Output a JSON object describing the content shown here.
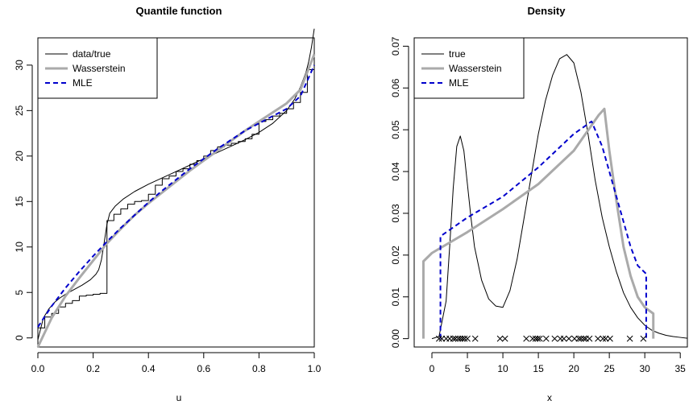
{
  "chart_data": [
    {
      "type": "line",
      "title": "Quantile function",
      "xlabel": "u",
      "ylabel": "",
      "xlim": [
        0,
        1
      ],
      "ylim": [
        -1,
        33
      ],
      "xticks": [
        "0.0",
        "0.2",
        "0.4",
        "0.6",
        "0.8",
        "1.0"
      ],
      "xtick_values": [
        0,
        0.2,
        0.4,
        0.6,
        0.8,
        1.0
      ],
      "yticks": [
        "0",
        "5",
        "10",
        "15",
        "20",
        "25",
        "30"
      ],
      "ytick_values": [
        0,
        5,
        10,
        15,
        20,
        25,
        30
      ],
      "legend_position": "top-left",
      "series": [
        {
          "name": "data/true",
          "color": "#000000",
          "style": "solid",
          "x": [
            0,
            0.01,
            0.02,
            0.04,
            0.06,
            0.08,
            0.1,
            0.13,
            0.16,
            0.19,
            0.21,
            0.22,
            0.23,
            0.24,
            0.25,
            0.26,
            0.28,
            0.31,
            0.35,
            0.4,
            0.45,
            0.5,
            0.55,
            0.6,
            0.65,
            0.7,
            0.75,
            0.8,
            0.85,
            0.9,
            0.93,
            0.95,
            0.97,
            0.98,
            0.99,
            1.0
          ],
          "y": [
            -0.2,
            1.0,
            2.2,
            3.2,
            3.9,
            4.4,
            4.8,
            5.3,
            5.8,
            6.4,
            7.0,
            7.5,
            8.6,
            10.5,
            12.5,
            13.7,
            14.5,
            15.3,
            16.1,
            16.9,
            17.6,
            18.3,
            19.0,
            19.7,
            20.4,
            21.1,
            21.8,
            22.6,
            23.6,
            25.0,
            26.3,
            27.6,
            29.2,
            30.4,
            32.0,
            34.0
          ]
        },
        {
          "name": "data/true (empirical steps)",
          "color": "#000000",
          "style": "step",
          "x": [
            0,
            0.025,
            0.05,
            0.075,
            0.1,
            0.125,
            0.15,
            0.175,
            0.2,
            0.225,
            0.25,
            0.275,
            0.3,
            0.325,
            0.35,
            0.375,
            0.4,
            0.425,
            0.45,
            0.475,
            0.5,
            0.525,
            0.55,
            0.575,
            0.6,
            0.625,
            0.65,
            0.675,
            0.7,
            0.725,
            0.75,
            0.775,
            0.8,
            0.825,
            0.85,
            0.875,
            0.9,
            0.925,
            0.95,
            0.975,
            1.0
          ],
          "y": [
            1.1,
            2.3,
            2.7,
            3.4,
            3.8,
            4.1,
            4.6,
            4.7,
            4.8,
            4.9,
            12.9,
            13.6,
            14.2,
            14.7,
            15.0,
            15.1,
            15.8,
            16.8,
            17.5,
            17.8,
            18.3,
            18.6,
            19.1,
            19.5,
            20.0,
            20.6,
            21.0,
            21.2,
            21.4,
            21.6,
            21.9,
            22.4,
            23.8,
            24.0,
            24.4,
            24.7,
            25.2,
            25.9,
            27.0,
            29.5,
            29.5
          ]
        },
        {
          "name": "Wasserstein",
          "color": "#aaaaaa",
          "style": "solid-thick",
          "x": [
            0,
            0.05,
            0.1,
            0.15,
            0.2,
            0.25,
            0.3,
            0.35,
            0.4,
            0.45,
            0.5,
            0.55,
            0.6,
            0.65,
            0.7,
            0.75,
            0.8,
            0.85,
            0.9,
            0.95,
            1.0
          ],
          "y": [
            -1.0,
            2.2,
            4.6,
            6.6,
            8.5,
            10.4,
            12.0,
            13.5,
            14.8,
            16.0,
            17.2,
            18.4,
            19.5,
            20.6,
            21.7,
            22.8,
            23.8,
            24.8,
            25.8,
            27.3,
            31.2
          ]
        },
        {
          "name": "MLE",
          "color": "#0000cc",
          "style": "dashed",
          "x": [
            0,
            0.05,
            0.1,
            0.15,
            0.2,
            0.25,
            0.3,
            0.35,
            0.4,
            0.45,
            0.5,
            0.55,
            0.6,
            0.65,
            0.7,
            0.75,
            0.8,
            0.85,
            0.9,
            0.95,
            1.0
          ],
          "y": [
            1.2,
            3.5,
            5.5,
            7.3,
            9.0,
            10.6,
            12.1,
            13.5,
            14.9,
            16.2,
            17.4,
            18.6,
            19.7,
            20.8,
            21.8,
            22.8,
            23.6,
            24.4,
            25.2,
            26.6,
            30.0
          ]
        }
      ]
    },
    {
      "type": "line",
      "title": "Density",
      "xlabel": "x",
      "ylabel": "",
      "xlim": [
        -2.5,
        36
      ],
      "ylim": [
        -0.002,
        0.072
      ],
      "xticks": [
        "0",
        "5",
        "10",
        "15",
        "20",
        "25",
        "30",
        "35"
      ],
      "xtick_values": [
        0,
        5,
        10,
        15,
        20,
        25,
        30,
        35
      ],
      "yticks": [
        "0.00",
        "0.01",
        "0.02",
        "0.03",
        "0.04",
        "0.05",
        "0.06",
        "0.07"
      ],
      "ytick_values": [
        0,
        0.01,
        0.02,
        0.03,
        0.04,
        0.05,
        0.06,
        0.07
      ],
      "legend_position": "top-left",
      "series": [
        {
          "name": "true",
          "color": "#000000",
          "style": "solid",
          "x": [
            0,
            1,
            2,
            2.5,
            3,
            3.5,
            4,
            4.5,
            5,
            5.5,
            6,
            7,
            8,
            9,
            10,
            11,
            12,
            13,
            14,
            15,
            16,
            17,
            18,
            19,
            20,
            21,
            22,
            23,
            24,
            25,
            26,
            27,
            28,
            29,
            30,
            31,
            32,
            33,
            34,
            35,
            36
          ],
          "y": [
            0,
            0.0005,
            0.009,
            0.022,
            0.036,
            0.046,
            0.0485,
            0.045,
            0.037,
            0.029,
            0.022,
            0.014,
            0.0095,
            0.0078,
            0.0075,
            0.0115,
            0.019,
            0.029,
            0.039,
            0.049,
            0.057,
            0.063,
            0.067,
            0.068,
            0.066,
            0.059,
            0.049,
            0.038,
            0.029,
            0.022,
            0.016,
            0.011,
            0.0075,
            0.005,
            0.0032,
            0.002,
            0.0013,
            0.0008,
            0.0005,
            0.0003,
            0.0001
          ]
        },
        {
          "name": "Wasserstein",
          "color": "#aaaaaa",
          "style": "solid-thick",
          "x": [
            -1.2,
            -1.2,
            0,
            5,
            10,
            15,
            20,
            23.5,
            24.3,
            25,
            26,
            27,
            28,
            29,
            30,
            31.2,
            31.2
          ],
          "y": [
            0,
            0.0185,
            0.0205,
            0.0255,
            0.031,
            0.037,
            0.045,
            0.0535,
            0.055,
            0.045,
            0.033,
            0.022,
            0.015,
            0.01,
            0.0075,
            0.006,
            0
          ]
        },
        {
          "name": "MLE",
          "color": "#0000cc",
          "style": "dashed",
          "x": [
            1.2,
            1.2,
            5,
            10,
            15,
            20,
            22.5,
            24,
            25,
            26,
            27,
            28,
            29,
            30.2,
            30.2
          ],
          "y": [
            0,
            0.0245,
            0.029,
            0.034,
            0.041,
            0.049,
            0.052,
            0.046,
            0.04,
            0.034,
            0.028,
            0.022,
            0.0175,
            0.0155,
            0
          ]
        }
      ],
      "rug_x": [
        1,
        1.4,
        2,
        2.5,
        3,
        3.3,
        3.7,
        4.0,
        4.3,
        4.6,
        5.0,
        6.1,
        9.6,
        10.3,
        13.3,
        14.2,
        14.6,
        14.9,
        15.2,
        16.1,
        17.3,
        18.1,
        18.6,
        19.3,
        20.1,
        20.7,
        21.0,
        21.4,
        21.7,
        22.2,
        23.4,
        24.1,
        24.5,
        25.1,
        27.9,
        29.8
      ]
    }
  ]
}
